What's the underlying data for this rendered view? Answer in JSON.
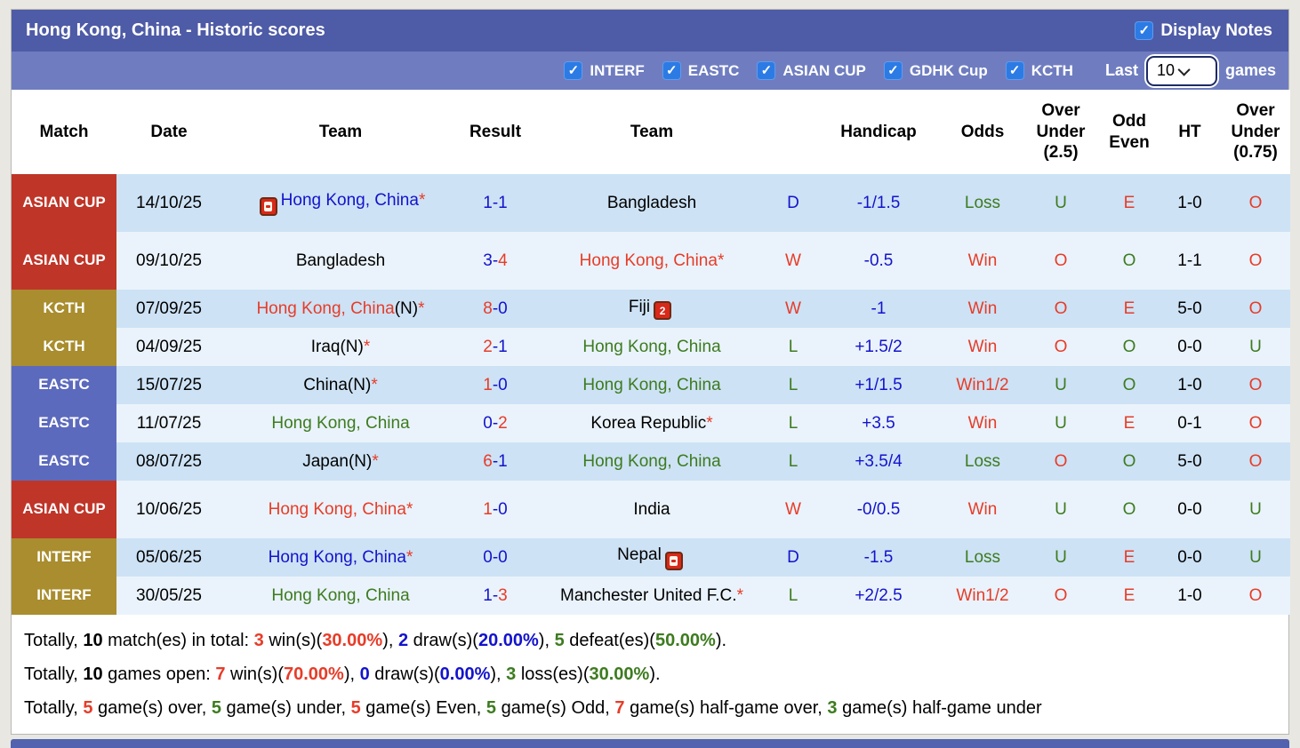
{
  "header": {
    "title": "Hong Kong, China - Historic scores",
    "display_notes_label": "Display Notes",
    "display_notes_checked": true
  },
  "filters": {
    "competitions": [
      {
        "label": "INTERF",
        "checked": true
      },
      {
        "label": "EASTC",
        "checked": true
      },
      {
        "label": "ASIAN CUP",
        "checked": true
      },
      {
        "label": "GDHK Cup",
        "checked": true
      },
      {
        "label": "KCTH",
        "checked": true
      }
    ],
    "last_label": "Last",
    "last_value": "10",
    "games_label": "games"
  },
  "table": {
    "columns": [
      "Match",
      "Date",
      "Team",
      "Result",
      "Team",
      "",
      "Handicap",
      "Odds",
      "Over Under (2.5)",
      "Odd Even",
      "HT",
      "Over Under (0.75)"
    ],
    "meta": {
      "star_char": "*",
      "n_suffix": "(N)",
      "result_sep": "-",
      "check_glyph": "✓"
    },
    "rows": [
      {
        "comp": "ASIAN CUP",
        "comp_class": "comp-red",
        "tall": true,
        "date": "14/10/25",
        "team1": {
          "name": "Hong Kong, China",
          "color": "blue",
          "n": false,
          "star": true,
          "icon": "1",
          "icon_pos": "before"
        },
        "result": {
          "left": "1",
          "left_c": "blue",
          "right": "1",
          "right_c": "blue"
        },
        "team2": {
          "name": "Bangladesh",
          "color": "black",
          "n": false,
          "star": false,
          "icon": null,
          "icon_pos": null
        },
        "wdl": {
          "t": "D",
          "c": "blue"
        },
        "handicap": {
          "t": "-1/1.5",
          "c": "blue"
        },
        "odds": {
          "t": "Loss",
          "c": "green"
        },
        "ou25": {
          "t": "U",
          "c": "green"
        },
        "oddeven": {
          "t": "E",
          "c": "red"
        },
        "ht": {
          "t": "1-0",
          "c": "black"
        },
        "ou075": {
          "t": "O",
          "c": "red"
        }
      },
      {
        "comp": "ASIAN CUP",
        "comp_class": "comp-red",
        "tall": true,
        "date": "09/10/25",
        "team1": {
          "name": "Bangladesh",
          "color": "black",
          "n": false,
          "star": false,
          "icon": null,
          "icon_pos": null
        },
        "result": {
          "left": "3",
          "left_c": "blue",
          "right": "4",
          "right_c": "red"
        },
        "team2": {
          "name": "Hong Kong, China",
          "color": "red",
          "n": false,
          "star": true,
          "icon": null,
          "icon_pos": null
        },
        "wdl": {
          "t": "W",
          "c": "red"
        },
        "handicap": {
          "t": "-0.5",
          "c": "blue"
        },
        "odds": {
          "t": "Win",
          "c": "red"
        },
        "ou25": {
          "t": "O",
          "c": "red"
        },
        "oddeven": {
          "t": "O",
          "c": "green"
        },
        "ht": {
          "t": "1-1",
          "c": "black"
        },
        "ou075": {
          "t": "O",
          "c": "red"
        }
      },
      {
        "comp": "KCTH",
        "comp_class": "comp-olive",
        "tall": false,
        "date": "07/09/25",
        "team1": {
          "name": "Hong Kong, China",
          "color": "red",
          "n": true,
          "star": true,
          "icon": null,
          "icon_pos": null
        },
        "result": {
          "left": "8",
          "left_c": "red",
          "right": "0",
          "right_c": "blue"
        },
        "team2": {
          "name": "Fiji",
          "color": "black",
          "n": false,
          "star": false,
          "icon": "2",
          "icon_pos": "after"
        },
        "wdl": {
          "t": "W",
          "c": "red"
        },
        "handicap": {
          "t": "-1",
          "c": "blue"
        },
        "odds": {
          "t": "Win",
          "c": "red"
        },
        "ou25": {
          "t": "O",
          "c": "red"
        },
        "oddeven": {
          "t": "E",
          "c": "red"
        },
        "ht": {
          "t": "5-0",
          "c": "black"
        },
        "ou075": {
          "t": "O",
          "c": "red"
        }
      },
      {
        "comp": "KCTH",
        "comp_class": "comp-olive",
        "tall": false,
        "date": "04/09/25",
        "team1": {
          "name": "Iraq",
          "color": "black",
          "n": true,
          "star": true,
          "icon": null,
          "icon_pos": null
        },
        "result": {
          "left": "2",
          "left_c": "red",
          "right": "1",
          "right_c": "blue"
        },
        "team2": {
          "name": "Hong Kong, China",
          "color": "green",
          "n": false,
          "star": false,
          "icon": null,
          "icon_pos": null
        },
        "wdl": {
          "t": "L",
          "c": "green"
        },
        "handicap": {
          "t": "+1.5/2",
          "c": "blue"
        },
        "odds": {
          "t": "Win",
          "c": "red"
        },
        "ou25": {
          "t": "O",
          "c": "red"
        },
        "oddeven": {
          "t": "O",
          "c": "green"
        },
        "ht": {
          "t": "0-0",
          "c": "black"
        },
        "ou075": {
          "t": "U",
          "c": "green"
        }
      },
      {
        "comp": "EASTC",
        "comp_class": "comp-indigo",
        "tall": false,
        "date": "15/07/25",
        "team1": {
          "name": "China",
          "color": "black",
          "n": true,
          "star": true,
          "icon": null,
          "icon_pos": null
        },
        "result": {
          "left": "1",
          "left_c": "red",
          "right": "0",
          "right_c": "blue"
        },
        "team2": {
          "name": "Hong Kong, China",
          "color": "green",
          "n": false,
          "star": false,
          "icon": null,
          "icon_pos": null
        },
        "wdl": {
          "t": "L",
          "c": "green"
        },
        "handicap": {
          "t": "+1/1.5",
          "c": "blue"
        },
        "odds": {
          "t": "Win1/2",
          "c": "red"
        },
        "ou25": {
          "t": "U",
          "c": "green"
        },
        "oddeven": {
          "t": "O",
          "c": "green"
        },
        "ht": {
          "t": "1-0",
          "c": "black"
        },
        "ou075": {
          "t": "O",
          "c": "red"
        }
      },
      {
        "comp": "EASTC",
        "comp_class": "comp-indigo",
        "tall": false,
        "date": "11/07/25",
        "team1": {
          "name": "Hong Kong, China",
          "color": "green",
          "n": false,
          "star": false,
          "icon": null,
          "icon_pos": null
        },
        "result": {
          "left": "0",
          "left_c": "blue",
          "right": "2",
          "right_c": "red"
        },
        "team2": {
          "name": "Korea Republic",
          "color": "black",
          "n": false,
          "star": true,
          "icon": null,
          "icon_pos": null
        },
        "wdl": {
          "t": "L",
          "c": "green"
        },
        "handicap": {
          "t": "+3.5",
          "c": "blue"
        },
        "odds": {
          "t": "Win",
          "c": "red"
        },
        "ou25": {
          "t": "U",
          "c": "green"
        },
        "oddeven": {
          "t": "E",
          "c": "red"
        },
        "ht": {
          "t": "0-1",
          "c": "black"
        },
        "ou075": {
          "t": "O",
          "c": "red"
        }
      },
      {
        "comp": "EASTC",
        "comp_class": "comp-indigo",
        "tall": false,
        "date": "08/07/25",
        "team1": {
          "name": "Japan",
          "color": "black",
          "n": true,
          "star": true,
          "icon": null,
          "icon_pos": null
        },
        "result": {
          "left": "6",
          "left_c": "red",
          "right": "1",
          "right_c": "blue"
        },
        "team2": {
          "name": "Hong Kong, China",
          "color": "green",
          "n": false,
          "star": false,
          "icon": null,
          "icon_pos": null
        },
        "wdl": {
          "t": "L",
          "c": "green"
        },
        "handicap": {
          "t": "+3.5/4",
          "c": "blue"
        },
        "odds": {
          "t": "Loss",
          "c": "green"
        },
        "ou25": {
          "t": "O",
          "c": "red"
        },
        "oddeven": {
          "t": "O",
          "c": "green"
        },
        "ht": {
          "t": "5-0",
          "c": "black"
        },
        "ou075": {
          "t": "O",
          "c": "red"
        }
      },
      {
        "comp": "ASIAN CUP",
        "comp_class": "comp-red",
        "tall": true,
        "date": "10/06/25",
        "team1": {
          "name": "Hong Kong, China",
          "color": "red",
          "n": false,
          "star": true,
          "icon": null,
          "icon_pos": null
        },
        "result": {
          "left": "1",
          "left_c": "red",
          "right": "0",
          "right_c": "blue"
        },
        "team2": {
          "name": "India",
          "color": "black",
          "n": false,
          "star": false,
          "icon": null,
          "icon_pos": null
        },
        "wdl": {
          "t": "W",
          "c": "red"
        },
        "handicap": {
          "t": "-0/0.5",
          "c": "blue"
        },
        "odds": {
          "t": "Win",
          "c": "red"
        },
        "ou25": {
          "t": "U",
          "c": "green"
        },
        "oddeven": {
          "t": "O",
          "c": "green"
        },
        "ht": {
          "t": "0-0",
          "c": "black"
        },
        "ou075": {
          "t": "U",
          "c": "green"
        }
      },
      {
        "comp": "INTERF",
        "comp_class": "comp-olive",
        "tall": false,
        "date": "05/06/25",
        "team1": {
          "name": "Hong Kong, China",
          "color": "blue",
          "n": false,
          "star": true,
          "icon": null,
          "icon_pos": null
        },
        "result": {
          "left": "0",
          "left_c": "blue",
          "right": "0",
          "right_c": "blue"
        },
        "team2": {
          "name": "Nepal",
          "color": "black",
          "n": false,
          "star": false,
          "icon": "1",
          "icon_pos": "after"
        },
        "wdl": {
          "t": "D",
          "c": "blue"
        },
        "handicap": {
          "t": "-1.5",
          "c": "blue"
        },
        "odds": {
          "t": "Loss",
          "c": "green"
        },
        "ou25": {
          "t": "U",
          "c": "green"
        },
        "oddeven": {
          "t": "E",
          "c": "red"
        },
        "ht": {
          "t": "0-0",
          "c": "black"
        },
        "ou075": {
          "t": "U",
          "c": "green"
        }
      },
      {
        "comp": "INTERF",
        "comp_class": "comp-olive",
        "tall": false,
        "date": "30/05/25",
        "team1": {
          "name": "Hong Kong, China",
          "color": "green",
          "n": false,
          "star": false,
          "icon": null,
          "icon_pos": null
        },
        "result": {
          "left": "1",
          "left_c": "blue",
          "right": "3",
          "right_c": "red"
        },
        "team2": {
          "name": "Manchester United F.C.",
          "color": "black",
          "n": false,
          "star": true,
          "icon": null,
          "icon_pos": null
        },
        "wdl": {
          "t": "L",
          "c": "green"
        },
        "handicap": {
          "t": "+2/2.5",
          "c": "blue"
        },
        "odds": {
          "t": "Win1/2",
          "c": "red"
        },
        "ou25": {
          "t": "O",
          "c": "red"
        },
        "oddeven": {
          "t": "E",
          "c": "red"
        },
        "ht": {
          "t": "1-0",
          "c": "black"
        },
        "ou075": {
          "t": "O",
          "c": "red"
        }
      }
    ]
  },
  "totals": {
    "lines": [
      [
        {
          "t": "Totally, ",
          "c": "black",
          "b": false
        },
        {
          "t": "10",
          "c": "black",
          "b": true
        },
        {
          "t": " match(es) in total: ",
          "c": "black",
          "b": false
        },
        {
          "t": "3",
          "c": "red",
          "b": true
        },
        {
          "t": " win(s)(",
          "c": "black",
          "b": false
        },
        {
          "t": "30.00%",
          "c": "red",
          "b": true
        },
        {
          "t": "), ",
          "c": "black",
          "b": false
        },
        {
          "t": "2",
          "c": "blue",
          "b": true
        },
        {
          "t": " draw(s)(",
          "c": "black",
          "b": false
        },
        {
          "t": "20.00%",
          "c": "blue",
          "b": true
        },
        {
          "t": "), ",
          "c": "black",
          "b": false
        },
        {
          "t": "5",
          "c": "green",
          "b": true
        },
        {
          "t": " defeat(es)(",
          "c": "black",
          "b": false
        },
        {
          "t": "50.00%",
          "c": "green",
          "b": true
        },
        {
          "t": ").",
          "c": "black",
          "b": false
        }
      ],
      [
        {
          "t": "Totally, ",
          "c": "black",
          "b": false
        },
        {
          "t": "10",
          "c": "black",
          "b": true
        },
        {
          "t": " games open: ",
          "c": "black",
          "b": false
        },
        {
          "t": "7",
          "c": "red",
          "b": true
        },
        {
          "t": " win(s)(",
          "c": "black",
          "b": false
        },
        {
          "t": "70.00%",
          "c": "red",
          "b": true
        },
        {
          "t": "), ",
          "c": "black",
          "b": false
        },
        {
          "t": "0",
          "c": "blue",
          "b": true
        },
        {
          "t": " draw(s)(",
          "c": "black",
          "b": false
        },
        {
          "t": "0.00%",
          "c": "blue",
          "b": true
        },
        {
          "t": "), ",
          "c": "black",
          "b": false
        },
        {
          "t": "3",
          "c": "green",
          "b": true
        },
        {
          "t": " loss(es)(",
          "c": "black",
          "b": false
        },
        {
          "t": "30.00%",
          "c": "green",
          "b": true
        },
        {
          "t": ").",
          "c": "black",
          "b": false
        }
      ],
      [
        {
          "t": "Totally, ",
          "c": "black",
          "b": false
        },
        {
          "t": "5",
          "c": "red",
          "b": true
        },
        {
          "t": " game(s) over, ",
          "c": "black",
          "b": false
        },
        {
          "t": "5",
          "c": "green",
          "b": true
        },
        {
          "t": " game(s) under, ",
          "c": "black",
          "b": false
        },
        {
          "t": "5",
          "c": "red",
          "b": true
        },
        {
          "t": " game(s) Even, ",
          "c": "black",
          "b": false
        },
        {
          "t": "5",
          "c": "green",
          "b": true
        },
        {
          "t": " game(s) Odd, ",
          "c": "black",
          "b": false
        },
        {
          "t": "7",
          "c": "red",
          "b": true
        },
        {
          "t": " game(s) half-game over, ",
          "c": "black",
          "b": false
        },
        {
          "t": "3",
          "c": "green",
          "b": true
        },
        {
          "t": " game(s) half-game under",
          "c": "black",
          "b": false
        }
      ]
    ]
  },
  "colors": {
    "title_bar": "#4e5ba6",
    "filter_bar": "#6f7dc0",
    "checkbox_blue": "#2c7be5",
    "row_blue": "#cde2f5",
    "row_light": "#eaf3fb",
    "comp_red": "#bf3528",
    "comp_olive": "#a98d2e",
    "comp_indigo": "#5c6abd",
    "text_red": "#e73c28",
    "text_blue": "#1313cc",
    "text_green": "#3d7b1f"
  }
}
